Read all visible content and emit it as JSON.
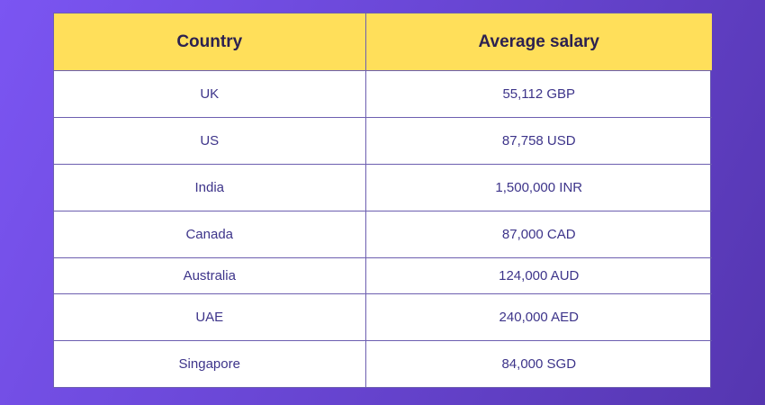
{
  "table": {
    "headers": [
      "Country",
      "Average salary"
    ],
    "rows": [
      {
        "country": "UK",
        "salary": "55,112 GBP"
      },
      {
        "country": "US",
        "salary": "87,758 USD"
      },
      {
        "country": "India",
        "salary": "1,500,000 INR"
      },
      {
        "country": "Canada",
        "salary": "87,000 CAD"
      },
      {
        "country": "Australia",
        "salary": "124,000 AUD"
      },
      {
        "country": "UAE",
        "salary": "240,000 AED"
      },
      {
        "country": "Singapore",
        "salary": "84,000 SGD"
      }
    ]
  },
  "colors": {
    "header_bg": "#ffdf5a",
    "header_text": "#2c2150",
    "cell_text": "#3d348a",
    "border": "#6d5fb0",
    "background_start": "#7b55f2",
    "background_end": "#5536b0"
  }
}
